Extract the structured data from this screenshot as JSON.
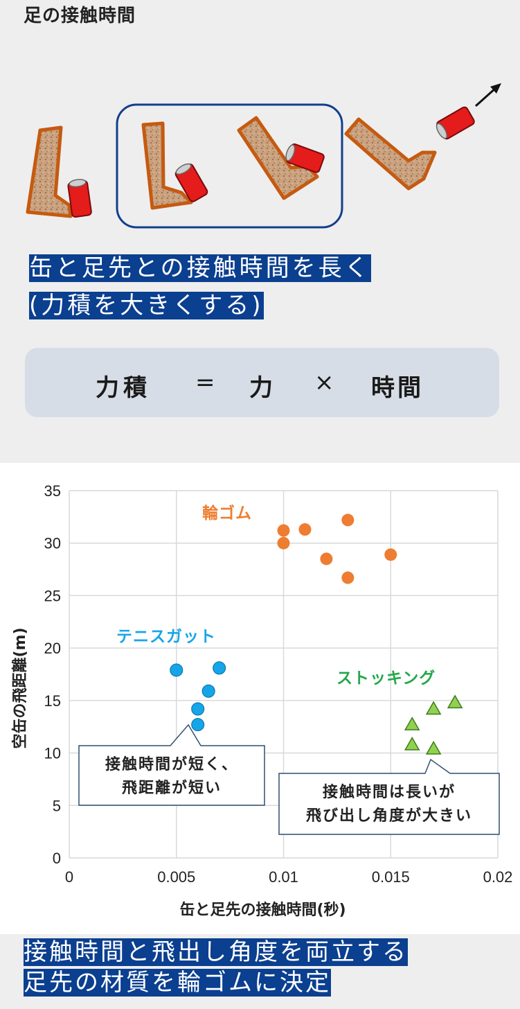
{
  "page_title": "足の接触時間",
  "caption_line1": "缶と足先との接触時間を長く",
  "caption_line2": "(力積を大きくする)",
  "formula": {
    "lhs": "力積",
    "eq": "=",
    "force": "力",
    "times": "×",
    "time": "時間"
  },
  "chart_data": {
    "type": "scatter",
    "xlabel": "缶と足先の接触時間(秒)",
    "ylabel": "空缶の飛距離(m)",
    "xlim": [
      0,
      0.02
    ],
    "ylim": [
      0,
      35
    ],
    "x_ticks": [
      "0",
      "0.005",
      "0.01",
      "0.015",
      "0.02"
    ],
    "y_ticks": [
      "0",
      "5",
      "10",
      "15",
      "20",
      "25",
      "30",
      "35"
    ],
    "grid": true,
    "series": [
      {
        "name": "輪ゴム",
        "marker": "circle",
        "color": "#ee7d31",
        "points": [
          [
            0.01,
            31.2
          ],
          [
            0.01,
            30.0
          ],
          [
            0.011,
            31.3
          ],
          [
            0.012,
            28.5
          ],
          [
            0.013,
            32.2
          ],
          [
            0.013,
            26.7
          ],
          [
            0.015,
            28.9
          ]
        ]
      },
      {
        "name": "テニスガット",
        "marker": "circle",
        "color": "#15a5e8",
        "points": [
          [
            0.005,
            17.9
          ],
          [
            0.006,
            14.2
          ],
          [
            0.006,
            12.7
          ],
          [
            0.0065,
            15.9
          ],
          [
            0.007,
            18.1
          ]
        ]
      },
      {
        "name": "ストッキング",
        "marker": "triangle",
        "color": "#92d050",
        "points": [
          [
            0.016,
            12.7
          ],
          [
            0.016,
            10.8
          ],
          [
            0.017,
            14.2
          ],
          [
            0.017,
            10.4
          ],
          [
            0.018,
            14.8
          ]
        ]
      }
    ],
    "callouts": [
      {
        "lines": [
          "接触時間が短く、",
          "飛距離が短い"
        ]
      },
      {
        "lines": [
          "接触時間は長いが",
          "飛び出し角度が大きい"
        ]
      }
    ]
  },
  "conclusion_line1": "接触時間と飛出し角度を両立する",
  "conclusion_line2": "足先の材質を輪ゴムに決定"
}
